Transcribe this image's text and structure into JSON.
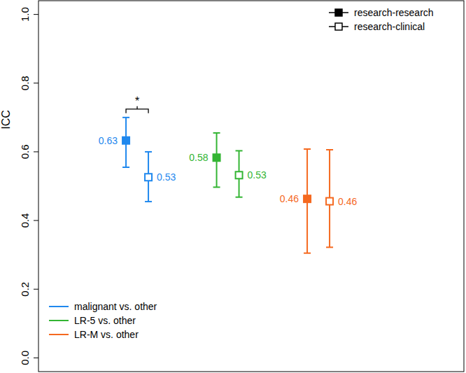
{
  "chart_data": {
    "type": "dot",
    "y_label": "ICC",
    "categories": [
      "malignant vs. other",
      "LR-5 vs. other",
      "LR-M vs. other"
    ],
    "colors": [
      "#1f88ee",
      "#33b533",
      "#f5691f"
    ],
    "ylim": [
      -0.04,
      1.04
    ],
    "yticks": [
      {
        "value": 0,
        "label": "0.0"
      },
      0.2,
      0.4,
      0.6,
      0.8,
      {
        "value": 1,
        "label": "1.0"
      }
    ],
    "grid": false,
    "data_labels": true,
    "legend": "top-right",
    "series": [
      {
        "name": "research-research",
        "marker": "square",
        "values": [
          0.633,
          0.583,
          0.463
        ],
        "value_labels": [
          "0.63",
          "0.58",
          "0.46"
        ],
        "lower": [
          0.555,
          0.497,
          0.305
        ],
        "upper": [
          0.7,
          0.655,
          0.608
        ]
      },
      {
        "name": "research-clinical",
        "marker": "open-square",
        "values": [
          0.526,
          0.532,
          0.456
        ],
        "value_labels": [
          "0.53",
          "0.53",
          "0.46"
        ],
        "lower": [
          0.455,
          0.468,
          0.322
        ],
        "upper": [
          0.6,
          0.603,
          0.606
        ]
      }
    ],
    "annotations": [
      {
        "text": "*",
        "category": "malignant vs. other",
        "between": [
          "research-research",
          "research-clinical"
        ]
      }
    ]
  }
}
